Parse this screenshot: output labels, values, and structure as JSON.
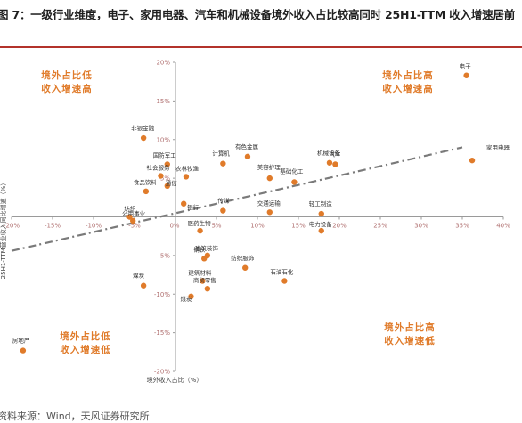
{
  "figure": {
    "title": "图 7：一级行业维度，电子、家用电器、汽车和机械设备境外收入占比较高同时 25H1-TTM 收入增速居前",
    "source": "资料来源：Wind，天风证券研究所"
  },
  "colors": {
    "point": "#e07b2a",
    "quadrant_text": "#e07b2a",
    "trend": "#7a7a7a",
    "axis": "#9a9a9a",
    "tick": "#b07070",
    "rule": "#b3322b"
  },
  "chart_data": {
    "type": "scatter",
    "xlabel": "境外收入占比（%）",
    "ylabel": "25H1-TTM营业收入同比增速（%）",
    "xlim": [
      -20,
      40
    ],
    "ylim": [
      -20,
      20
    ],
    "xticks": [
      -20,
      -15,
      -10,
      -5,
      0,
      5,
      10,
      15,
      20,
      25,
      30,
      35,
      40
    ],
    "yticks": [
      -20,
      -15,
      -10,
      -5,
      0,
      5,
      10,
      15,
      20
    ],
    "xtick_labels": [
      "-20%",
      "-15%",
      "-10%",
      "-5%",
      "0%",
      "5%",
      "10%",
      "15%",
      "20%",
      "25%",
      "30%",
      "35%",
      "40%"
    ],
    "ytick_labels": [
      "-20%",
      "-15%",
      "-10%",
      "-5%",
      "0%",
      "5%",
      "10%",
      "15%",
      "20%"
    ],
    "quadrant_labels": [
      "境外占比低",
      "收入增速高",
      "境外占比高",
      "收入增速高",
      "境外占比低",
      "收入增速低",
      "境外占比高",
      "收入增速低"
    ],
    "trendline": {
      "style": "dash-dot",
      "from": [
        -20,
        -4.4
      ],
      "to": [
        35,
        9.0
      ]
    },
    "points": [
      {
        "name": "电子",
        "x": 35.5,
        "y": 18.3
      },
      {
        "name": "家用电器",
        "x": 36.2,
        "y": 7.3
      },
      {
        "name": "机械设备",
        "x": 18.8,
        "y": 7.0
      },
      {
        "name": "汽车",
        "x": 19.5,
        "y": 6.8
      },
      {
        "name": "基础化工",
        "x": 14.5,
        "y": 4.5
      },
      {
        "name": "美容护理",
        "x": 11.5,
        "y": 5.0
      },
      {
        "name": "有色金属",
        "x": 8.8,
        "y": 7.8
      },
      {
        "name": "计算机",
        "x": 5.8,
        "y": 6.9
      },
      {
        "name": "交通运输",
        "x": 11.5,
        "y": 0.6
      },
      {
        "name": "轻工制造",
        "x": 17.8,
        "y": 0.4
      },
      {
        "name": "电力设备",
        "x": 17.8,
        "y": -1.8
      },
      {
        "name": "传媒",
        "x": 5.8,
        "y": 0.8
      },
      {
        "name": "医药生物",
        "x": 3.0,
        "y": -1.8
      },
      {
        "name": "非银金融",
        "x": -3.9,
        "y": 10.2
      },
      {
        "name": "国防军工",
        "x": -1.0,
        "y": 6.8
      },
      {
        "name": "社会服务",
        "x": -1.8,
        "y": 5.3
      },
      {
        "name": "通信",
        "x": -1.0,
        "y": 4.0
      },
      {
        "name": "农林牧渔",
        "x": 1.3,
        "y": 5.2
      },
      {
        "name": "食品饮料",
        "x": -3.6,
        "y": 3.3
      },
      {
        "name": "银行",
        "x": 1.0,
        "y": 1.7
      },
      {
        "name": "纺织",
        "x": -5.6,
        "y": 0.0
      },
      {
        "name": "公用事业",
        "x": -5.2,
        "y": -0.5
      },
      {
        "name": "建筑装饰",
        "x": 3.9,
        "y": -5.0
      },
      {
        "name": "钢铁",
        "x": 3.5,
        "y": -5.4
      },
      {
        "name": "建筑材料",
        "x": 3.3,
        "y": -8.3
      },
      {
        "name": "商贸零售",
        "x": 3.9,
        "y": -9.3
      },
      {
        "name": "煤炭",
        "x": 1.9,
        "y": -10.3
      },
      {
        "name": "纺织服饰",
        "x": 8.5,
        "y": -6.6
      },
      {
        "name": "石油石化",
        "x": 13.3,
        "y": -8.3
      },
      {
        "name": "煤炭",
        "x": -3.9,
        "y": -8.9
      },
      {
        "name": "房地产",
        "x": -18.6,
        "y": -17.3
      }
    ]
  }
}
